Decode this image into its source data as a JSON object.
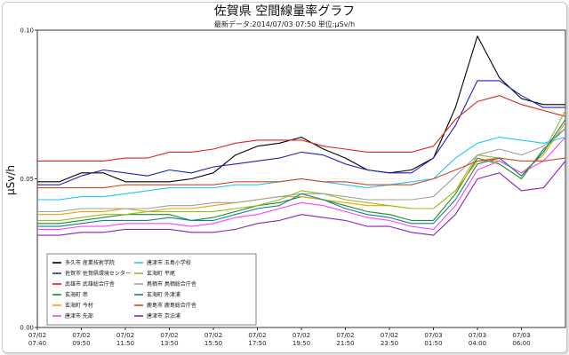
{
  "chart_data": {
    "type": "line",
    "title": "佐賀県 空間線量率グラフ",
    "subtitle": "最新データ:2014/07/03 07:50 単位:μSv/h",
    "ylabel": "μSv/h",
    "xlabel": "",
    "ylim": [
      0.0,
      0.1
    ],
    "y_ticks": [
      "0.10",
      "0.05",
      "0.00"
    ],
    "grid": false,
    "legend_position": "bottom-left",
    "x_ticks": [
      {
        "top": "07/02",
        "bottom": "07:40"
      },
      {
        "top": "07/02",
        "bottom": "09:50"
      },
      {
        "top": "07/02",
        "bottom": "11:50"
      },
      {
        "top": "07/02",
        "bottom": "13:50"
      },
      {
        "top": "07/02",
        "bottom": "15:50"
      },
      {
        "top": "07/02",
        "bottom": "17:50"
      },
      {
        "top": "07/02",
        "bottom": "19:50"
      },
      {
        "top": "07/02",
        "bottom": "21:50"
      },
      {
        "top": "07/02",
        "bottom": "23:50"
      },
      {
        "top": "07/03",
        "bottom": "01:50"
      },
      {
        "top": "07/03",
        "bottom": "04:00"
      },
      {
        "top": "07/03",
        "bottom": "06:00"
      }
    ],
    "x": [
      "07/02 07:40",
      "07/02 08:40",
      "07/02 09:50",
      "07/02 10:50",
      "07/02 11:50",
      "07/02 12:50",
      "07/02 13:50",
      "07/02 14:50",
      "07/02 15:50",
      "07/02 16:50",
      "07/02 17:50",
      "07/02 18:50",
      "07/02 19:50",
      "07/02 20:50",
      "07/02 21:50",
      "07/02 22:50",
      "07/02 23:50",
      "07/03 00:50",
      "07/03 01:50",
      "07/03 02:50",
      "07/03 04:00",
      "07/03 05:00",
      "07/03 06:00",
      "07/03 07:00",
      "07/03 07:50"
    ],
    "series": [
      {
        "name": "多久市 産業技術学院",
        "color": "#000000",
        "values": [
          0.049,
          0.049,
          0.052,
          0.052,
          0.049,
          0.049,
          0.049,
          0.05,
          0.052,
          0.058,
          0.061,
          0.062,
          0.064,
          0.06,
          0.057,
          0.053,
          0.052,
          0.053,
          0.057,
          0.074,
          0.098,
          0.084,
          0.077,
          0.075,
          0.075
        ]
      },
      {
        "name": "佐賀市 佐賀県環境センター",
        "color": "#1f1fc8",
        "values": [
          0.048,
          0.048,
          0.051,
          0.053,
          0.052,
          0.051,
          0.053,
          0.052,
          0.054,
          0.055,
          0.056,
          0.057,
          0.059,
          0.058,
          0.055,
          0.053,
          0.052,
          0.052,
          0.057,
          0.068,
          0.083,
          0.083,
          0.078,
          0.074,
          0.074
        ]
      },
      {
        "name": "武雄市 武雄総合庁舎",
        "color": "#e02020",
        "values": [
          0.056,
          0.056,
          0.056,
          0.056,
          0.057,
          0.057,
          0.059,
          0.059,
          0.06,
          0.062,
          0.063,
          0.063,
          0.063,
          0.061,
          0.06,
          0.059,
          0.059,
          0.059,
          0.061,
          0.07,
          0.076,
          0.078,
          0.075,
          0.073,
          0.071
        ]
      },
      {
        "name": "玄海町 串",
        "color": "#1f8c2a",
        "values": [
          0.035,
          0.035,
          0.036,
          0.037,
          0.038,
          0.038,
          0.038,
          0.036,
          0.037,
          0.039,
          0.041,
          0.042,
          0.044,
          0.043,
          0.041,
          0.039,
          0.038,
          0.036,
          0.036,
          0.045,
          0.057,
          0.055,
          0.05,
          0.06,
          0.067
        ]
      },
      {
        "name": "玄海町 今村",
        "color": "#f0a000",
        "values": [
          0.038,
          0.038,
          0.039,
          0.039,
          0.04,
          0.039,
          0.04,
          0.04,
          0.041,
          0.042,
          0.043,
          0.044,
          0.044,
          0.043,
          0.042,
          0.041,
          0.041,
          0.04,
          0.04,
          0.046,
          0.056,
          0.056,
          0.052,
          0.058,
          0.069
        ]
      },
      {
        "name": "唐津市 先部",
        "color": "#ff40ff",
        "values": [
          0.033,
          0.033,
          0.034,
          0.034,
          0.035,
          0.035,
          0.035,
          0.034,
          0.035,
          0.037,
          0.038,
          0.04,
          0.042,
          0.041,
          0.039,
          0.037,
          0.036,
          0.034,
          0.033,
          0.041,
          0.053,
          0.056,
          0.052,
          0.056,
          0.064
        ]
      },
      {
        "name": "唐津市 玉島小学校",
        "color": "#20c8f0",
        "values": [
          0.043,
          0.043,
          0.044,
          0.044,
          0.045,
          0.046,
          0.047,
          0.047,
          0.047,
          0.048,
          0.048,
          0.049,
          0.05,
          0.049,
          0.048,
          0.047,
          0.048,
          0.049,
          0.05,
          0.057,
          0.062,
          0.064,
          0.063,
          0.062,
          0.064
        ]
      },
      {
        "name": "玄海町 平尾",
        "color": "#90c020",
        "values": [
          0.036,
          0.036,
          0.037,
          0.038,
          0.038,
          0.039,
          0.039,
          0.039,
          0.039,
          0.04,
          0.041,
          0.043,
          0.046,
          0.045,
          0.043,
          0.042,
          0.041,
          0.04,
          0.04,
          0.046,
          0.058,
          0.057,
          0.051,
          0.059,
          0.073
        ]
      },
      {
        "name": "鳥栖市 鳥栖総合庁舎",
        "color": "#a0a0a0",
        "values": [
          0.039,
          0.039,
          0.04,
          0.04,
          0.04,
          0.04,
          0.041,
          0.041,
          0.042,
          0.042,
          0.043,
          0.044,
          0.045,
          0.045,
          0.044,
          0.043,
          0.043,
          0.043,
          0.044,
          0.051,
          0.058,
          0.06,
          0.058,
          0.061,
          0.067
        ]
      },
      {
        "name": "玄海町 外津浦",
        "color": "#10809a",
        "values": [
          0.034,
          0.034,
          0.035,
          0.036,
          0.036,
          0.036,
          0.037,
          0.036,
          0.036,
          0.038,
          0.04,
          0.041,
          0.045,
          0.043,
          0.04,
          0.038,
          0.037,
          0.035,
          0.035,
          0.043,
          0.055,
          0.057,
          0.051,
          0.059,
          0.07
        ]
      },
      {
        "name": "鹿島市 鹿島総合庁舎",
        "color": "#d04820",
        "values": [
          0.047,
          0.047,
          0.047,
          0.047,
          0.048,
          0.048,
          0.048,
          0.048,
          0.048,
          0.049,
          0.049,
          0.049,
          0.05,
          0.049,
          0.049,
          0.048,
          0.048,
          0.048,
          0.05,
          0.053,
          0.056,
          0.057,
          0.056,
          0.056,
          0.057
        ]
      },
      {
        "name": "唐津市 京泊浦",
        "color": "#8a20c8",
        "values": [
          0.031,
          0.031,
          0.032,
          0.032,
          0.033,
          0.033,
          0.033,
          0.032,
          0.032,
          0.033,
          0.035,
          0.036,
          0.038,
          0.037,
          0.036,
          0.034,
          0.034,
          0.032,
          0.031,
          0.038,
          0.05,
          0.052,
          0.046,
          0.047,
          0.056
        ]
      }
    ]
  }
}
